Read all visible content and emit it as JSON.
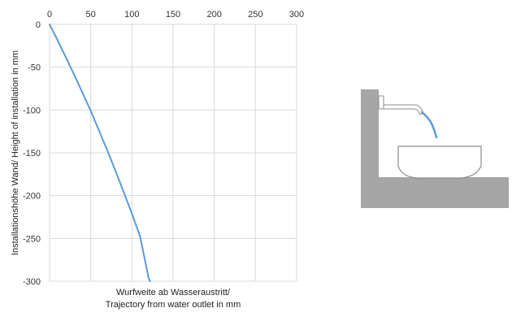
{
  "chart_data": {
    "type": "line",
    "x": [
      0,
      10,
      20,
      30,
      40,
      50,
      60,
      70,
      80,
      90,
      100,
      110,
      120,
      122
    ],
    "series": [
      {
        "values": [
          0,
          -19,
          -39,
          -59,
          -80,
          -101,
          -124,
          -147,
          -171,
          -196,
          -221,
          -248,
          -295,
          -300
        ],
        "color": "#5b9bd5"
      }
    ],
    "xlim": [
      0,
      300
    ],
    "ylim": [
      -300,
      0
    ],
    "x_ticks": [
      "0",
      "50",
      "100",
      "150",
      "200",
      "250",
      "300"
    ],
    "y_ticks": [
      "0",
      "-50",
      "-100",
      "-150",
      "-200",
      "-250",
      "-300"
    ],
    "x_tick_values": [
      0,
      50,
      100,
      150,
      200,
      250,
      300
    ],
    "y_tick_values": [
      0,
      -50,
      -100,
      -150,
      -200,
      -250,
      -300
    ],
    "x_axis_position": "top",
    "xlabel_line1": "Wurfweite ab Wasseraustritt/",
    "xlabel_line2": "Trajectory from water outlet in mm",
    "ylabel": "Installationshöhe Wand/ Height of installation  in mm",
    "grid": true,
    "legend": "none"
  },
  "colors": {
    "grid": "#d9d9d9",
    "line": "#5b9bd5",
    "illustration_gray": "#a6a6a6",
    "basin_outline": "#8c8c8c"
  },
  "illustration": {
    "icon": "faucet-basin-illustration-icon",
    "water": "water-stream-icon"
  }
}
